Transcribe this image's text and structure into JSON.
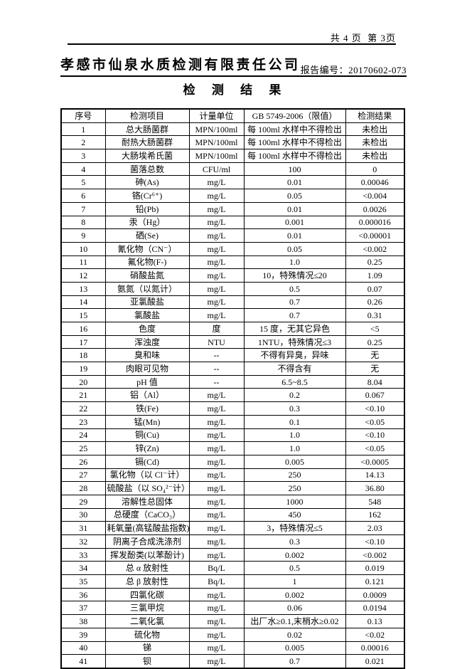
{
  "page": {
    "page_info": "共 4 页  第 3页",
    "company_name": "孝感市仙泉水质检测有限责任公司",
    "report_no_label": "报告编号：",
    "report_no_value": "20170602-073",
    "title": "检 测 结 果"
  },
  "colors": {
    "text": "#000000",
    "border": "#000000",
    "page_bg": "#ffffff"
  },
  "table": {
    "headers": [
      "序号",
      "检测项目",
      "计量单位",
      "GB 5749-2006（限值）",
      "检测结果"
    ],
    "rows": [
      [
        "1",
        "总大肠菌群",
        "MPN/100ml",
        "每 100ml 水样中不得检出",
        "未检出"
      ],
      [
        "2",
        "耐热大肠菌群",
        "MPN/100ml",
        "每 100ml 水样中不得检出",
        "未检出"
      ],
      [
        "3",
        "大肠埃希氏菌",
        "MPN/100ml",
        "每 100ml 水样中不得检出",
        "未检出"
      ],
      [
        "4",
        "菌落总数",
        "CFU/ml",
        "100",
        "0"
      ],
      [
        "5",
        "砷(As)",
        "mg/L",
        "0.01",
        "0.00046"
      ],
      [
        "6",
        "铬(Cr⁶⁺)",
        "mg/L",
        "0.05",
        "<0.004"
      ],
      [
        "7",
        "铅(Pb)",
        "mg/L",
        "0.01",
        "0.0026"
      ],
      [
        "8",
        "汞（Hg）",
        "mg/L",
        "0.001",
        "0.000016"
      ],
      [
        "9",
        "硒(Se)",
        "mg/L",
        "0.01",
        "<0.00001"
      ],
      [
        "10",
        "氰化物（CN⁻）",
        "mg/L",
        "0.05",
        "<0.002"
      ],
      [
        "11",
        "氟化物(F-)",
        "mg/L",
        "1.0",
        "0.25"
      ],
      [
        "12",
        "硝酸盐氮",
        "mg/L",
        "10，特殊情况≤20",
        "1.09"
      ],
      [
        "13",
        "氨氮（以氮计）",
        "mg/L",
        "0.5",
        "0.07"
      ],
      [
        "14",
        "亚氯酸盐",
        "mg/L",
        "0.7",
        "0.26"
      ],
      [
        "15",
        "氯酸盐",
        "mg/L",
        "0.7",
        "0.31"
      ],
      [
        "16",
        "色度",
        "度",
        "15 度，无其它异色",
        "<5"
      ],
      [
        "17",
        "浑浊度",
        "NTU",
        "1NTU，特殊情况≤3",
        "0.25"
      ],
      [
        "18",
        "臭和味",
        "--",
        "不得有异臭，异味",
        "无"
      ],
      [
        "19",
        "肉眼可见物",
        "--",
        "不得含有",
        "无"
      ],
      [
        "20",
        "pH 值",
        "--",
        "6.5~8.5",
        "8.04"
      ],
      [
        "21",
        "铝（Al）",
        "mg/L",
        "0.2",
        "0.067"
      ],
      [
        "22",
        "铁(Fe)",
        "mg/L",
        "0.3",
        "<0.10"
      ],
      [
        "23",
        "锰(Mn)",
        "mg/L",
        "0.1",
        "<0.05"
      ],
      [
        "24",
        "铜(Cu)",
        "mg/L",
        "1.0",
        "<0.10"
      ],
      [
        "25",
        "锌(Zn)",
        "mg/L",
        "1.0",
        "<0.05"
      ],
      [
        "26",
        "镉(Cd)",
        "mg/L",
        "0.005",
        "<0.0005"
      ],
      [
        "27",
        "氯化物（以 Cl⁻计）",
        "mg/L",
        "250",
        "14.13"
      ],
      [
        "28",
        "硫酸盐（以 SO₄²⁻计）",
        "mg/L",
        "250",
        "36.80"
      ],
      [
        "29",
        "溶解性总固体",
        "mg/L",
        "1000",
        "548"
      ],
      [
        "30",
        "总硬度（CaCO₃）",
        "mg/L",
        "450",
        "162"
      ],
      [
        "31",
        "耗氧量(高锰酸盐指数)",
        "mg/L",
        "3，特殊情况≤5",
        "2.03"
      ],
      [
        "32",
        "阴离子合成洗涤剂",
        "mg/L",
        "0.3",
        "<0.10"
      ],
      [
        "33",
        "挥发酚类(以苯酚计)",
        "mg/L",
        "0.002",
        "<0.002"
      ],
      [
        "34",
        "总 α 放射性",
        "Bq/L",
        "0.5",
        "0.019"
      ],
      [
        "35",
        "总 β 放射性",
        "Bq/L",
        "1",
        "0.121"
      ],
      [
        "36",
        "四氯化碳",
        "mg/L",
        "0.002",
        "0.0009"
      ],
      [
        "37",
        "三氯甲烷",
        "mg/L",
        "0.06",
        "0.0194"
      ],
      [
        "38",
        "二氧化氯",
        "mg/L",
        "出厂水≥0.1,末梢水≥0.02",
        "0.13"
      ],
      [
        "39",
        "硫化物",
        "mg/L",
        "0.02",
        "<0.02"
      ],
      [
        "40",
        "锑",
        "mg/L",
        "0.005",
        "0.00016"
      ],
      [
        "41",
        "钡",
        "mg/L",
        "0.7",
        "0.021"
      ]
    ]
  }
}
